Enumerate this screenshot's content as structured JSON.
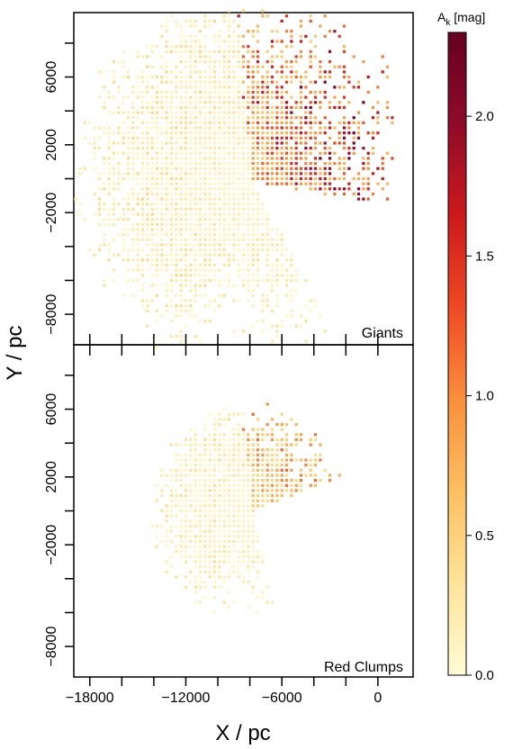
{
  "chart_data": {
    "type": "heatmap",
    "axes": {
      "xlabel": "X / pc",
      "ylabel": "Y / pc",
      "xlim": [
        -19000,
        2200
      ],
      "ylim": [
        -9800,
        9800
      ],
      "x_ticks": [
        -18000,
        -12000,
        -6000,
        0
      ],
      "x_tick_labels": [
        "−18000",
        "−12000",
        "−6000",
        "0"
      ],
      "x_minor_ticks": [
        -18000,
        -16000,
        -14000,
        -12000,
        -10000,
        -8000,
        -6000,
        -4000,
        -2000,
        0
      ],
      "y_ticks": [
        6000,
        2000,
        -2000,
        -8000
      ],
      "y_tick_labels": [
        "6000",
        "2000",
        "−2000",
        "−8000"
      ],
      "y_minor_ticks": [
        8000,
        6000,
        4000,
        2000,
        0,
        -2000,
        -4000,
        -6000,
        -8000
      ]
    },
    "colorbar": {
      "label": "A",
      "label_subscript": "k",
      "label_suffix": " [mag]",
      "range": [
        0.0,
        2.3
      ],
      "ticks": [
        0.0,
        0.5,
        1.0,
        1.5,
        2.0
      ],
      "tick_labels": [
        "0.0",
        "0.5",
        "1.0",
        "1.5",
        "2.0"
      ],
      "colors": [
        "#fffbd6",
        "#fee49a",
        "#fdbf63",
        "#f98f3e",
        "#ee4a24",
        "#cc1a1c",
        "#8f0b2a",
        "#660022"
      ]
    },
    "panels": [
      {
        "name": "Giants",
        "sun": [
          -8000,
          0
        ],
        "max_radius": 11500,
        "fans": [
          {
            "az": [
              95,
              245
            ],
            "density": 0.85,
            "mag": [
              0.05,
              0.45
            ]
          },
          {
            "az": [
              60,
              95
            ],
            "density": 0.35,
            "mag": [
              0.5,
              1.8
            ]
          },
          {
            "az": [
              -10,
              60
            ],
            "density": 0.3,
            "mag": [
              0.7,
              2.2
            ]
          },
          {
            "az": [
              245,
              300
            ],
            "density": 0.25,
            "mag": [
              0.05,
              0.4
            ]
          }
        ]
      },
      {
        "name": "Red Clumps",
        "sun": [
          -8000,
          0
        ],
        "max_radius": 6500,
        "fans": [
          {
            "az": [
              95,
              240
            ],
            "density": 0.8,
            "mag": [
              0.05,
              0.4
            ]
          },
          {
            "az": [
              20,
              95
            ],
            "density": 0.35,
            "mag": [
              0.4,
              1.2
            ]
          },
          {
            "az": [
              240,
              285
            ],
            "density": 0.2,
            "mag": [
              0.05,
              0.35
            ]
          }
        ]
      }
    ]
  }
}
